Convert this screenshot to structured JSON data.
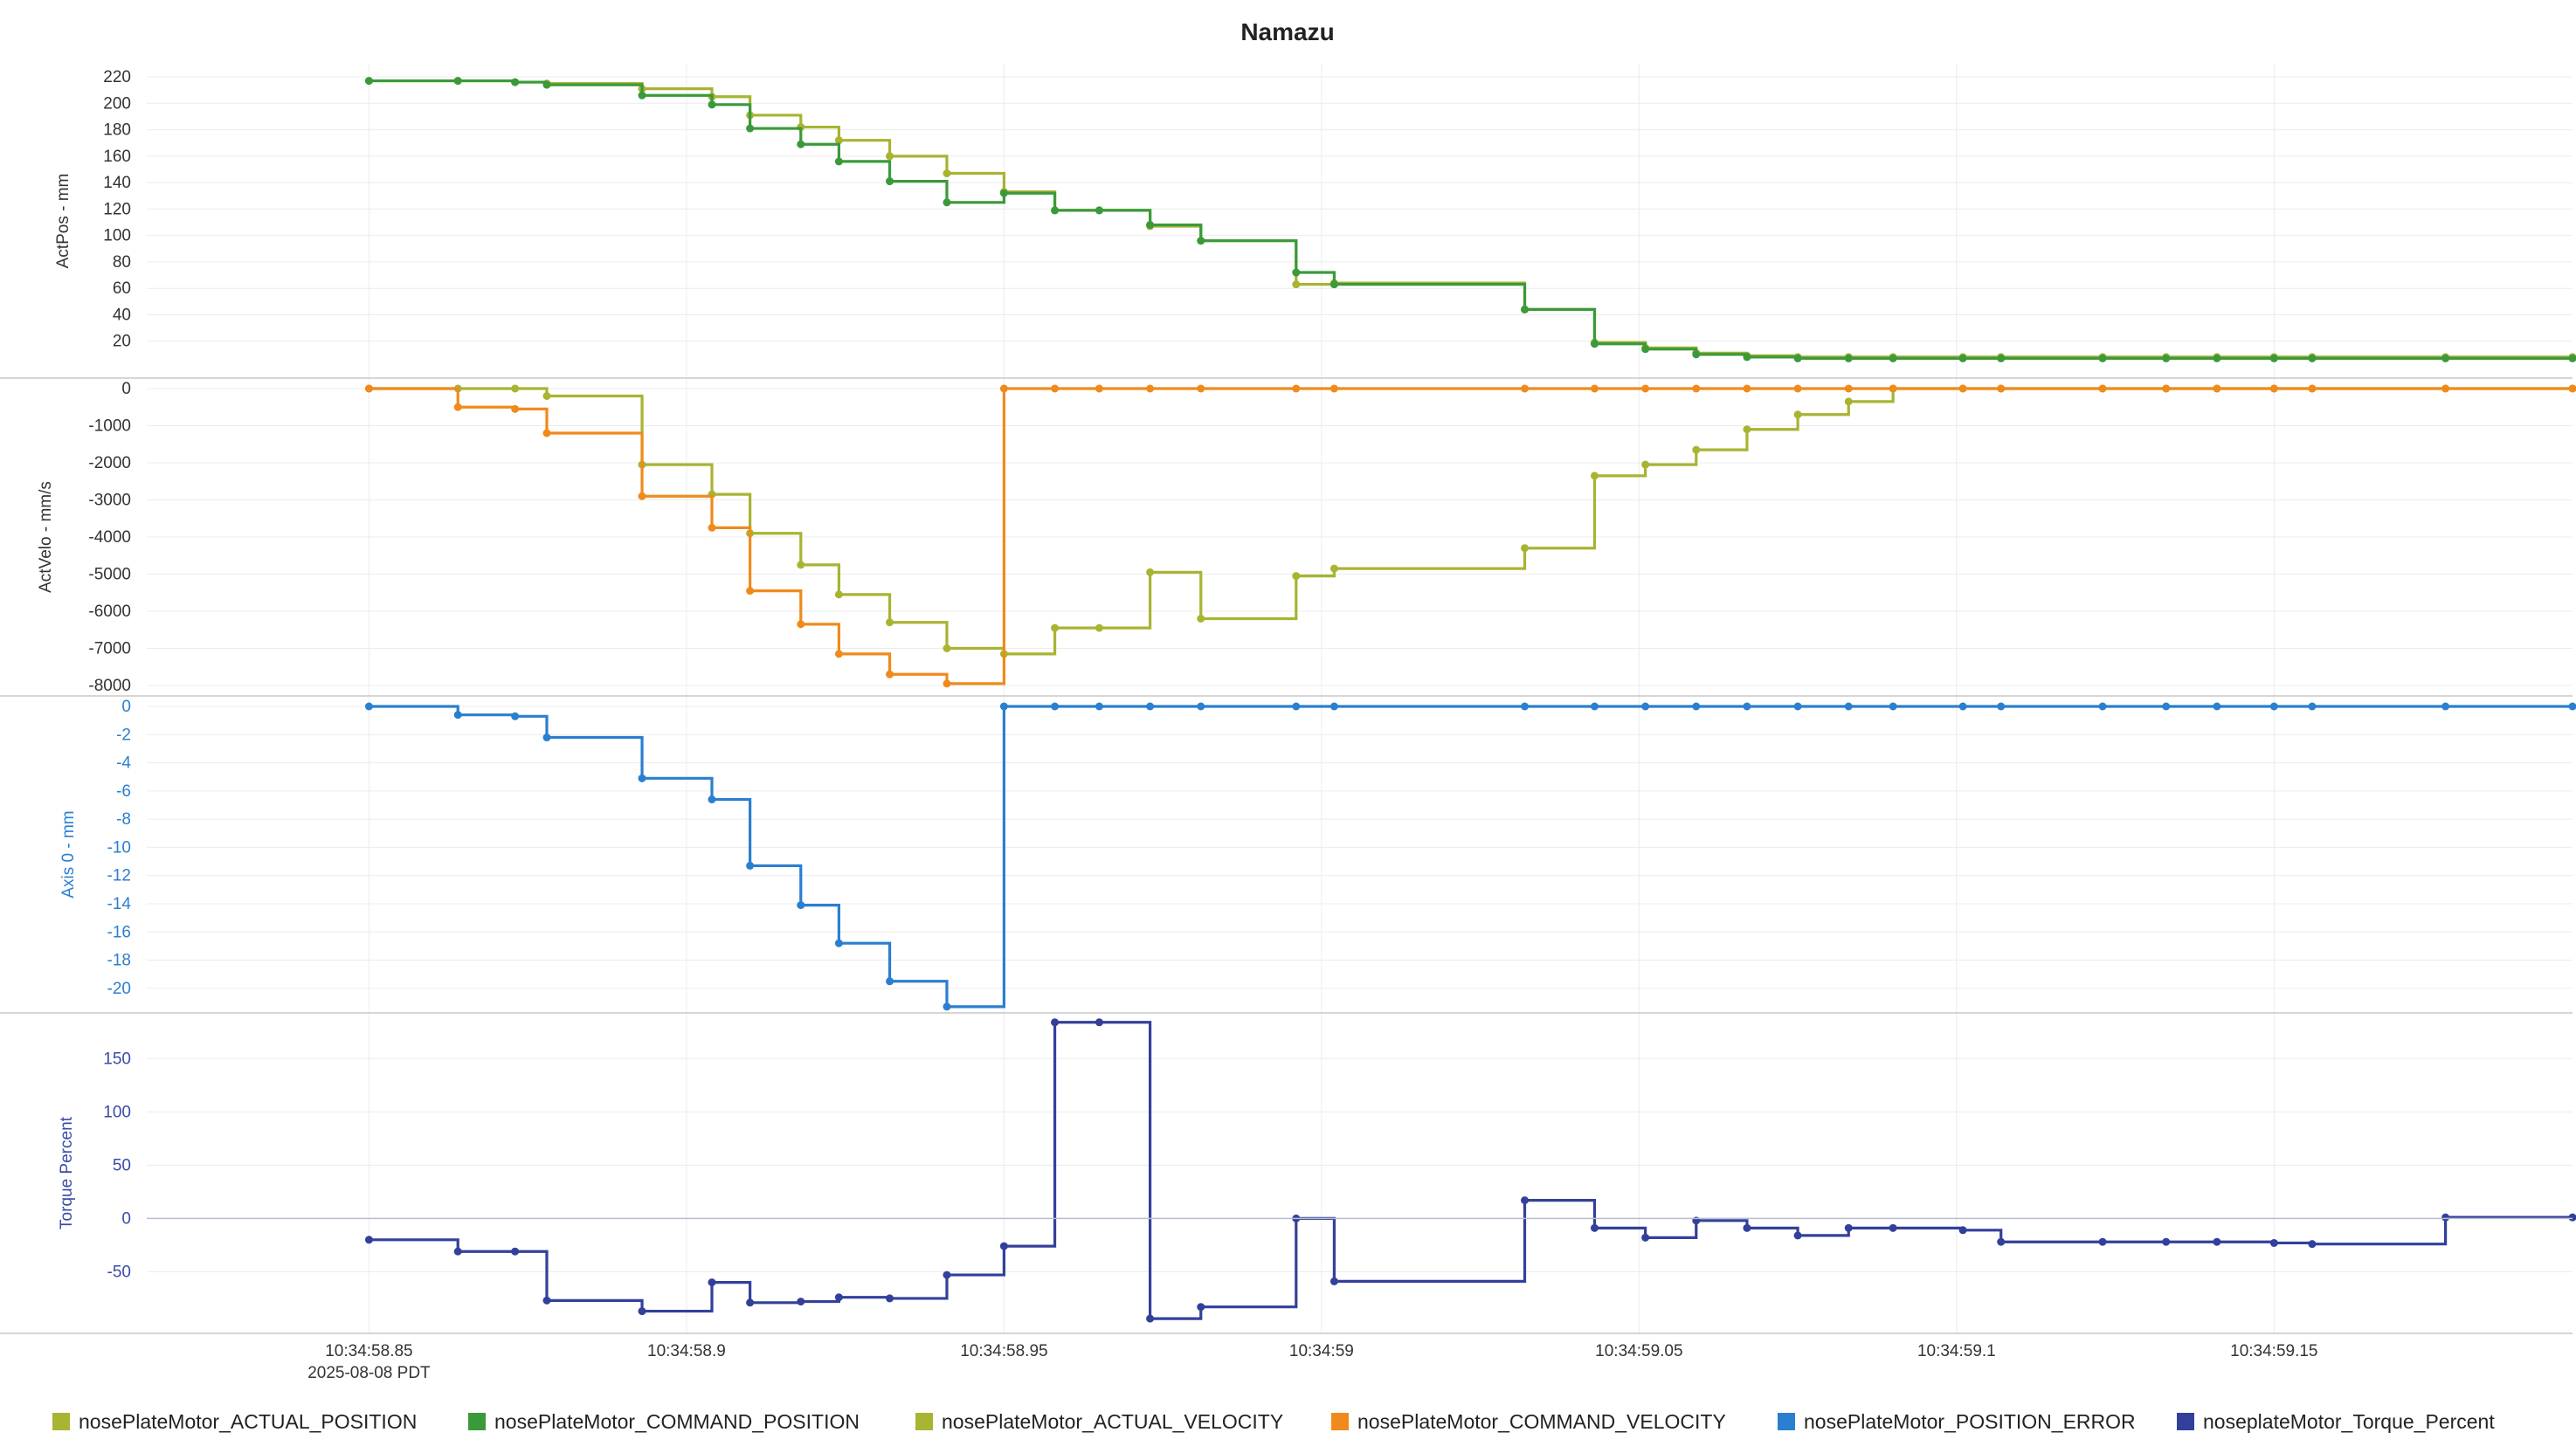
{
  "chart_data": {
    "type": "line",
    "title": "Namazu",
    "x_axis": {
      "ticks": [
        "10:34:58.85",
        "10:34:58.9",
        "10:34:58.95",
        "10:34:59",
        "10:34:59.05",
        "10:34:59.1",
        "10:34:59.15"
      ],
      "tick_values": [
        0,
        0.05,
        0.1,
        0.15,
        0.2,
        0.25,
        0.3
      ],
      "date_label": "2025-08-08 PDT",
      "xlim": [
        -0.035,
        0.347
      ]
    },
    "legend": {
      "placement": "bottom",
      "items": [
        {
          "name": "nosePlateMotor_ACTUAL_POSITION",
          "color": "#a8b432"
        },
        {
          "name": "nosePlateMotor_COMMAND_POSITION",
          "color": "#3a9a3a"
        },
        {
          "name": "nosePlateMotor_ACTUAL_VELOCITY",
          "color": "#a8b432"
        },
        {
          "name": "nosePlateMotor_COMMAND_VELOCITY",
          "color": "#f08a1c"
        },
        {
          "name": "nosePlateMotor_POSITION_ERROR",
          "color": "#2a7fd0"
        },
        {
          "name": "noseplateMotor_Torque_Percent",
          "color": "#33409a"
        }
      ]
    },
    "panes": [
      {
        "id": "actpos",
        "ylabel": "ActPos - mm",
        "label_color": "#333333",
        "ylim": [
          0,
          222
        ],
        "yticks": [
          20,
          40,
          60,
          80,
          100,
          120,
          140,
          160,
          180,
          200,
          220
        ],
        "series": [
          {
            "name": "nosePlateMotor_ACTUAL_POSITION",
            "color": "#a8b432",
            "x": [
              0,
              0.014,
              0.023,
              0.028,
              0.043,
              0.054,
              0.06,
              0.068,
              0.074,
              0.082,
              0.091,
              0.1,
              0.108,
              0.115,
              0.123,
              0.131,
              0.146,
              0.152,
              0.182,
              0.193,
              0.201,
              0.209,
              0.217,
              0.225,
              0.233,
              0.24,
              0.251,
              0.257,
              0.273,
              0.283,
              0.291,
              0.3,
              0.306,
              0.327,
              0.347
            ],
            "y": [
              217,
              217,
              216,
              215,
              211,
              205,
              191,
              182,
              172,
              160,
              147,
              133,
              119,
              119,
              107,
              96,
              63,
              64,
              44,
              19,
              15,
              11,
              9,
              8,
              8,
              8,
              8,
              8,
              8,
              8,
              8,
              8,
              8,
              8,
              8
            ]
          },
          {
            "name": "nosePlateMotor_COMMAND_POSITION",
            "color": "#3a9a3a",
            "x": [
              0,
              0.014,
              0.023,
              0.028,
              0.043,
              0.054,
              0.06,
              0.068,
              0.074,
              0.082,
              0.091,
              0.1,
              0.108,
              0.115,
              0.123,
              0.131,
              0.146,
              0.152,
              0.182,
              0.193,
              0.201,
              0.209,
              0.217,
              0.225,
              0.233,
              0.24,
              0.251,
              0.257,
              0.273,
              0.283,
              0.291,
              0.3,
              0.306,
              0.327,
              0.347
            ],
            "y": [
              217,
              217,
              216,
              214,
              206,
              199,
              181,
              169,
              156,
              141,
              125,
              132,
              119,
              119,
              108,
              96,
              72,
              63,
              44,
              18,
              14,
              10,
              8,
              7,
              7,
              7,
              7,
              7,
              7,
              7,
              7,
              7,
              7,
              7,
              7
            ]
          }
        ]
      },
      {
        "id": "actvelo",
        "ylabel": "ActVelo - mm/s",
        "label_color": "#333333",
        "ylim": [
          -8000,
          0
        ],
        "yticks": [
          0,
          -1000,
          -2000,
          -3000,
          -4000,
          -5000,
          -6000,
          -7000,
          -8000
        ],
        "series": [
          {
            "name": "nosePlateMotor_ACTUAL_VELOCITY",
            "color": "#a8b432",
            "x": [
              0,
              0.014,
              0.023,
              0.028,
              0.043,
              0.054,
              0.06,
              0.068,
              0.074,
              0.082,
              0.091,
              0.1,
              0.108,
              0.115,
              0.123,
              0.131,
              0.146,
              0.152,
              0.182,
              0.193,
              0.201,
              0.209,
              0.217,
              0.225,
              0.233,
              0.24,
              0.251,
              0.257,
              0.273,
              0.283,
              0.291,
              0.3,
              0.306,
              0.327,
              0.347
            ],
            "y": [
              0,
              0,
              0,
              -200,
              -2050,
              -2850,
              -3900,
              -4750,
              -5550,
              -6300,
              -7000,
              -7150,
              -6450,
              -6450,
              -4950,
              -6200,
              -5050,
              -4850,
              -4300,
              -2350,
              -2050,
              -1650,
              -1100,
              -700,
              -350,
              0,
              0,
              0,
              0,
              0,
              0,
              0,
              0,
              0,
              0
            ]
          },
          {
            "name": "nosePlateMotor_COMMAND_VELOCITY",
            "color": "#f08a1c",
            "x": [
              0,
              0.014,
              0.023,
              0.028,
              0.043,
              0.054,
              0.06,
              0.068,
              0.074,
              0.082,
              0.091,
              0.1,
              0.108,
              0.115,
              0.123,
              0.131,
              0.146,
              0.152,
              0.182,
              0.193,
              0.201,
              0.209,
              0.217,
              0.225,
              0.233,
              0.24,
              0.251,
              0.257,
              0.273,
              0.283,
              0.291,
              0.3,
              0.306,
              0.327,
              0.347
            ],
            "y": [
              0,
              -500,
              -550,
              -1200,
              -2900,
              -3750,
              -5450,
              -6350,
              -7150,
              -7700,
              -7950,
              0,
              0,
              0,
              0,
              0,
              0,
              0,
              0,
              0,
              0,
              0,
              0,
              0,
              0,
              0,
              0,
              0,
              0,
              0,
              0,
              0,
              0,
              0,
              0
            ]
          }
        ]
      },
      {
        "id": "axis0",
        "ylabel": "Axis 0 - mm",
        "label_color": "#2a7fd0",
        "ylim": [
          -21,
          0
        ],
        "yticks": [
          0,
          -2,
          -4,
          -6,
          -8,
          -10,
          -12,
          -14,
          -16,
          -18,
          -20
        ],
        "series": [
          {
            "name": "nosePlateMotor_POSITION_ERROR",
            "color": "#2a7fd0",
            "x": [
              0,
              0.014,
              0.023,
              0.028,
              0.043,
              0.054,
              0.06,
              0.068,
              0.074,
              0.082,
              0.091,
              0.1,
              0.108,
              0.115,
              0.123,
              0.131,
              0.146,
              0.152,
              0.182,
              0.193,
              0.201,
              0.209,
              0.217,
              0.225,
              0.233,
              0.24,
              0.251,
              0.257,
              0.273,
              0.283,
              0.291,
              0.3,
              0.306,
              0.327,
              0.347
            ],
            "y": [
              0,
              -0.6,
              -0.7,
              -2.2,
              -5.1,
              -6.6,
              -11.3,
              -14.1,
              -16.8,
              -19.5,
              -21.3,
              0,
              0,
              0,
              0,
              0,
              0,
              0,
              0,
              0,
              0,
              0,
              0,
              0,
              0,
              0,
              0,
              0,
              0,
              0,
              0,
              0,
              0,
              0,
              0
            ]
          }
        ]
      },
      {
        "id": "torque",
        "ylabel": "Torque Percent",
        "label_color": "#3a4aa8",
        "ylim": [
          -98,
          183
        ],
        "yticks": [
          150,
          100,
          50,
          0,
          -50
        ],
        "series": [
          {
            "name": "noseplateMotor_Torque_Percent",
            "color": "#33409a",
            "x": [
              0,
              0.014,
              0.023,
              0.028,
              0.043,
              0.054,
              0.06,
              0.068,
              0.074,
              0.082,
              0.091,
              0.1,
              0.108,
              0.115,
              0.123,
              0.131,
              0.146,
              0.152,
              0.182,
              0.193,
              0.201,
              0.209,
              0.217,
              0.225,
              0.233,
              0.24,
              0.251,
              0.257,
              0.273,
              0.283,
              0.291,
              0.3,
              0.306,
              0.327,
              0.347
            ],
            "y": [
              -20,
              -31,
              -31,
              -77,
              -87,
              -60,
              -79,
              -78,
              -74,
              -75,
              -53,
              -26,
              184,
              184,
              -94,
              -83,
              0,
              -59,
              17,
              -9,
              -18,
              -2,
              -9,
              -16,
              -9,
              -9,
              -11,
              -22,
              -22,
              -22,
              -22,
              -23,
              -24,
              1,
              1
            ]
          }
        ]
      }
    ]
  }
}
